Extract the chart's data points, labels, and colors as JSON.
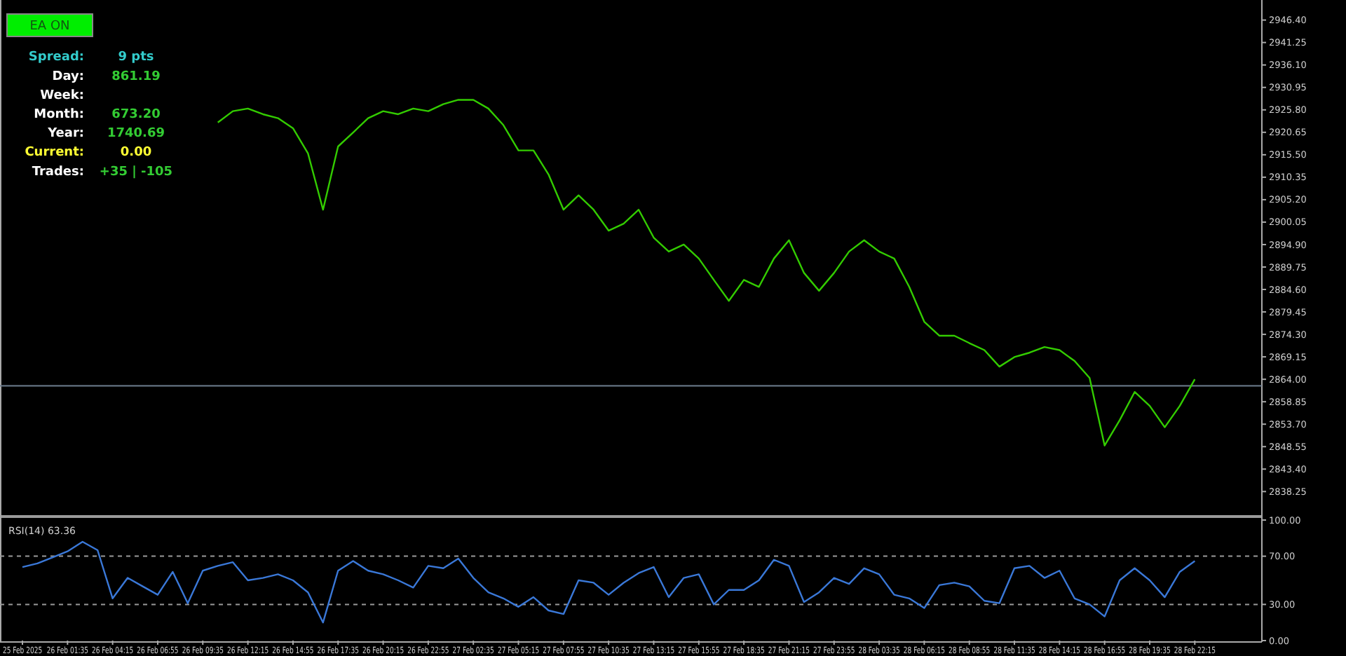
{
  "chart_data": [
    {
      "type": "line",
      "categories": [
        null,
        null,
        null,
        null,
        null,
        null,
        null,
        null,
        null,
        null,
        null,
        null,
        null,
        null,
        null,
        null,
        null,
        null,
        null,
        null,
        null,
        null,
        null,
        null,
        null,
        null,
        null,
        null,
        null,
        null,
        null,
        null,
        null,
        null,
        null,
        null,
        null,
        null,
        null,
        null,
        null,
        null,
        null,
        null,
        null,
        null,
        null,
        null,
        null,
        null,
        null,
        null,
        null,
        null,
        null,
        null,
        null,
        null,
        null,
        null,
        null,
        null,
        null,
        null,
        null,
        null,
        null,
        null,
        null,
        null,
        null,
        null,
        null,
        null,
        null,
        null,
        null,
        null,
        null,
        null,
        null,
        null,
        null,
        null,
        null,
        null,
        null,
        null,
        null
      ],
      "series": [
        {
          "color": "#33cc00",
          "values": [
            null,
            null,
            null,
            null,
            null,
            null,
            null,
            null,
            null,
            null,
            null,
            null,
            null,
            2922.9,
            2925.5,
            2926.1,
            2924.8,
            2923.9,
            2921.6,
            2915.8,
            2902.9,
            2917.4,
            2920.6,
            2923.9,
            2925.5,
            2924.8,
            2926.1,
            2925.5,
            2927.1,
            2928.1,
            2928.1,
            2926.1,
            2922.3,
            2916.5,
            2916.5,
            2911.0,
            2902.9,
            2906.2,
            2902.9,
            2898.1,
            2899.7,
            2902.9,
            2896.5,
            2893.3,
            2894.9,
            2891.7,
            2886.8,
            2882.0,
            2886.8,
            2885.2,
            2891.7,
            2895.9,
            2888.4,
            2884.3,
            2888.4,
            2893.3,
            2895.9,
            2893.3,
            2891.7,
            2885.2,
            2877.2,
            2874.0,
            2874.0,
            2872.3,
            2870.7,
            2866.9,
            2869.1,
            2870.1,
            2871.4,
            2870.7,
            2868.2,
            2864.3,
            2848.8,
            2854.6,
            2861.1,
            2857.9,
            2853.0,
            2857.9,
            2864.0,
            null,
            null,
            null,
            null,
            null,
            null,
            null,
            null,
            null,
            null
          ]
        }
      ],
      "ylim": [
        2833,
        2951
      ],
      "yticks": [
        {
          "value": 2946.4,
          "label": "2946.40"
        },
        {
          "value": 2941.25,
          "label": "2941.25"
        },
        {
          "value": 2936.1,
          "label": "2936.10"
        },
        {
          "value": 2930.95,
          "label": "2930.95"
        },
        {
          "value": 2925.8,
          "label": "2925.80"
        },
        {
          "value": 2920.65,
          "label": "2920.65"
        },
        {
          "value": 2915.5,
          "label": "2915.50"
        },
        {
          "value": 2910.35,
          "label": "2910.35"
        },
        {
          "value": 2905.2,
          "label": "2905.20"
        },
        {
          "value": 2900.05,
          "label": "2900.05"
        },
        {
          "value": 2894.9,
          "label": "2894.90"
        },
        {
          "value": 2889.75,
          "label": "2889.75"
        },
        {
          "value": 2884.6,
          "label": "2884.60"
        },
        {
          "value": 2879.45,
          "label": "2879.45"
        },
        {
          "value": 2874.3,
          "label": "2874.30"
        },
        {
          "value": 2869.15,
          "label": "2869.15"
        },
        {
          "value": 2864,
          "label": "2864.00"
        },
        {
          "value": 2858.85,
          "label": "2858.85"
        },
        {
          "value": 2853.7,
          "label": "2853.70"
        },
        {
          "value": 2848.55,
          "label": "2848.55"
        },
        {
          "value": 2843.4,
          "label": "2843.40"
        },
        {
          "value": 2838.25,
          "label": "2838.25"
        }
      ],
      "ref_lines": [
        {
          "axis": "y",
          "value": 2862.5,
          "color": "#6f7f8f",
          "line_style": "solid"
        }
      ],
      "tick_labels": "y",
      "grid": false
    },
    {
      "type": "line",
      "title": "RSI(14) 63.36",
      "categories": [
        "25 Feb 2025",
        null,
        null,
        "26 Feb 01:35",
        null,
        null,
        "26 Feb 04:15",
        null,
        null,
        "26 Feb 06:55",
        null,
        null,
        "26 Feb 09:35",
        null,
        null,
        "26 Feb 12:15",
        null,
        null,
        "26 Feb 14:55",
        null,
        null,
        "26 Feb 17:35",
        null,
        null,
        "26 Feb 20:15",
        null,
        null,
        "26 Feb 22:55",
        null,
        null,
        "27 Feb 02:35",
        null,
        null,
        "27 Feb 05:15",
        null,
        null,
        "27 Feb 07:55",
        null,
        null,
        "27 Feb 10:35",
        null,
        null,
        "27 Feb 13:15",
        null,
        null,
        "27 Feb 15:55",
        null,
        null,
        "27 Feb 18:35",
        null,
        null,
        "27 Feb 21:15",
        null,
        null,
        "27 Feb 23:55",
        null,
        null,
        "28 Feb 03:35",
        null,
        null,
        "28 Feb 06:15",
        null,
        null,
        "28 Feb 08:55",
        null,
        null,
        "28 Feb 11:35",
        null,
        null,
        "28 Feb 14:15",
        null,
        null,
        "28 Feb 16:55",
        null,
        null,
        "28 Feb 19:35",
        null,
        null,
        "28 Feb 22:15",
        null,
        null,
        null,
        null,
        null,
        null,
        null,
        null,
        null,
        null
      ],
      "series": [
        {
          "color": "#3a78d8",
          "values": [
            61,
            64,
            69,
            74,
            82,
            75,
            35,
            52,
            45,
            38,
            57,
            31,
            58,
            62,
            65,
            50,
            52,
            55,
            50,
            40,
            15,
            58,
            66,
            58,
            55,
            50,
            44,
            62,
            60,
            68,
            52,
            40,
            35,
            28,
            36,
            25,
            22,
            50,
            48,
            38,
            48,
            56,
            61,
            36,
            52,
            55,
            30,
            42,
            42,
            50,
            67,
            62,
            32,
            40,
            52,
            47,
            60,
            55,
            38,
            35,
            27,
            46,
            48,
            45,
            33,
            31,
            60,
            62,
            52,
            58,
            35,
            30,
            20,
            50,
            60,
            50,
            36,
            57,
            66,
            null,
            null,
            null,
            null,
            null,
            null,
            null,
            null,
            null,
            null
          ]
        }
      ],
      "ylim": [
        0,
        100
      ],
      "yticks": [
        {
          "value": 100,
          "label": "100.00"
        },
        {
          "value": 70,
          "label": "70.00"
        },
        {
          "value": 30,
          "label": "30.00"
        },
        {
          "value": 0,
          "label": "0.00"
        }
      ],
      "ref_lines": [
        {
          "axis": "y",
          "value": 70,
          "color": "#9a9a9a",
          "line_style": "dashed"
        },
        {
          "axis": "y",
          "value": 30,
          "color": "#9a9a9a",
          "line_style": "dashed"
        }
      ],
      "grid": false
    },
    {
      "type": "other",
      "title": "EA ON",
      "annotations": [
        "Spread:",
        "9 pts",
        "Day:",
        "861.19",
        "Week:",
        null,
        "Month:",
        "673.20",
        "Year:",
        "1740.69",
        "Current:",
        "0.00",
        "Trades:",
        "+35 | -105"
      ]
    }
  ]
}
